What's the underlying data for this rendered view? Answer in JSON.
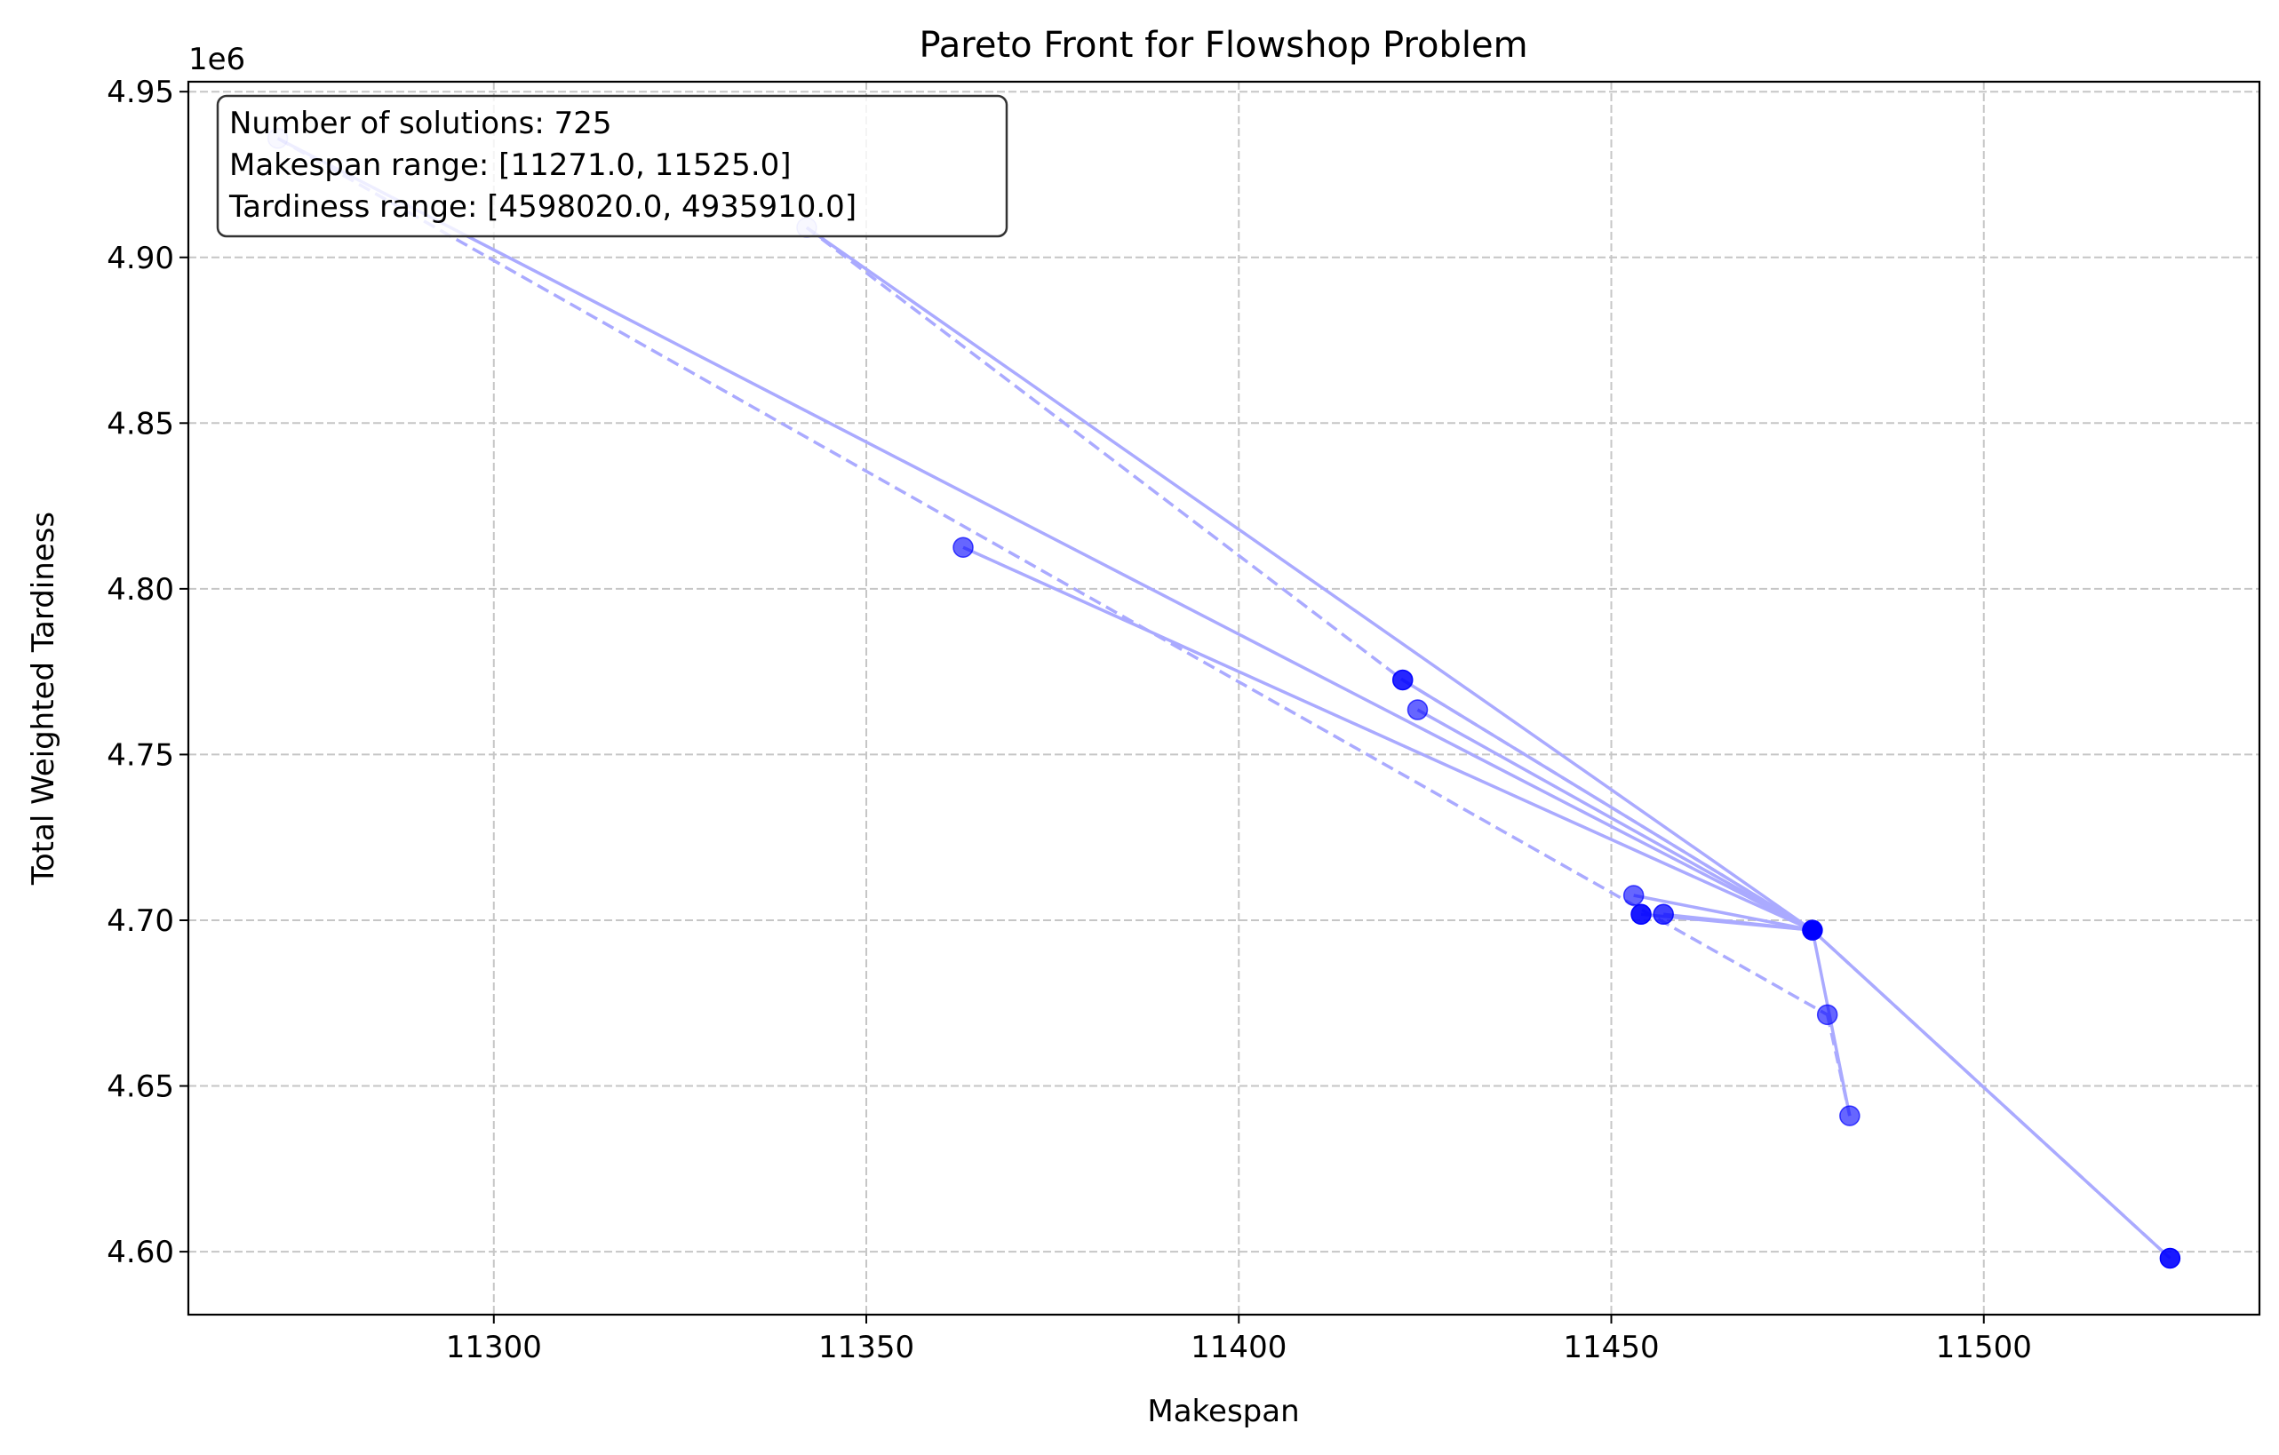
{
  "chart_data": {
    "type": "scatter",
    "title": "Pareto Front for Flowshop Problem",
    "xlabel": "Makespan",
    "ylabel": "Total Weighted Tardiness",
    "y_scale_label": "1e6",
    "xlim": [
      11259,
      11537
    ],
    "ylim": [
      4581000,
      4953000
    ],
    "x_ticks": [
      11300,
      11350,
      11400,
      11450,
      11500
    ],
    "y_ticks": [
      4600000,
      4650000,
      4700000,
      4750000,
      4800000,
      4850000,
      4900000,
      4950000
    ],
    "x_tick_labels": [
      "11300",
      "11350",
      "11400",
      "11450",
      "11500"
    ],
    "y_tick_labels": [
      "4.60",
      "4.65",
      "4.70",
      "4.75",
      "4.80",
      "4.85",
      "4.90",
      "4.95"
    ],
    "grid": true,
    "point_color": "#0000ff",
    "line_color": "#aaaaff",
    "points": [
      {
        "x": 11271,
        "y": 4935910,
        "alpha": 0.15
      },
      {
        "x": 11342,
        "y": 4909000,
        "alpha": 0.15
      },
      {
        "x": 11363,
        "y": 4812500,
        "alpha": 0.6
      },
      {
        "x": 11422,
        "y": 4772500,
        "alpha": 0.85
      },
      {
        "x": 11424,
        "y": 4763500,
        "alpha": 0.6
      },
      {
        "x": 11453,
        "y": 4707500,
        "alpha": 0.6
      },
      {
        "x": 11454,
        "y": 4701800,
        "alpha": 0.9
      },
      {
        "x": 11457,
        "y": 4701800,
        "alpha": 0.75
      },
      {
        "x": 11477,
        "y": 4697000,
        "alpha": 1.0
      },
      {
        "x": 11479,
        "y": 4671500,
        "alpha": 0.6
      },
      {
        "x": 11482,
        "y": 4641000,
        "alpha": 0.6
      },
      {
        "x": 11525,
        "y": 4598020,
        "alpha": 0.9
      }
    ],
    "solid_lines": [
      [
        [
          11271,
          4935910
        ],
        [
          11477,
          4697000
        ]
      ],
      [
        [
          11342,
          4909000
        ],
        [
          11477,
          4697000
        ]
      ],
      [
        [
          11363,
          4812500
        ],
        [
          11477,
          4697000
        ]
      ],
      [
        [
          11422,
          4772500
        ],
        [
          11477,
          4697000
        ]
      ],
      [
        [
          11424,
          4763500
        ],
        [
          11477,
          4697000
        ]
      ],
      [
        [
          11453,
          4707500
        ],
        [
          11477,
          4697000
        ]
      ],
      [
        [
          11454,
          4701800
        ],
        [
          11477,
          4697000
        ]
      ],
      [
        [
          11457,
          4701800
        ],
        [
          11477,
          4697000
        ]
      ],
      [
        [
          11477,
          4697000
        ],
        [
          11525,
          4598020
        ]
      ],
      [
        [
          11477,
          4697000
        ],
        [
          11482,
          4641000
        ]
      ]
    ],
    "dashed_lines": [
      [
        [
          11271,
          4935910
        ],
        [
          11479,
          4671500
        ]
      ],
      [
        [
          11342,
          4909000
        ],
        [
          11422,
          4772500
        ]
      ],
      [
        [
          11422,
          4772500
        ],
        [
          11477,
          4697000
        ]
      ],
      [
        [
          11479,
          4671500
        ],
        [
          11482,
          4641000
        ]
      ],
      [
        [
          11477,
          4697000
        ],
        [
          11525,
          4598020
        ]
      ]
    ],
    "annotation_lines": [
      "Number of solutions: 725",
      "Makespan range: [11271.0, 11525.0]",
      "Tardiness range: [4598020.0, 4935910.0]"
    ]
  }
}
